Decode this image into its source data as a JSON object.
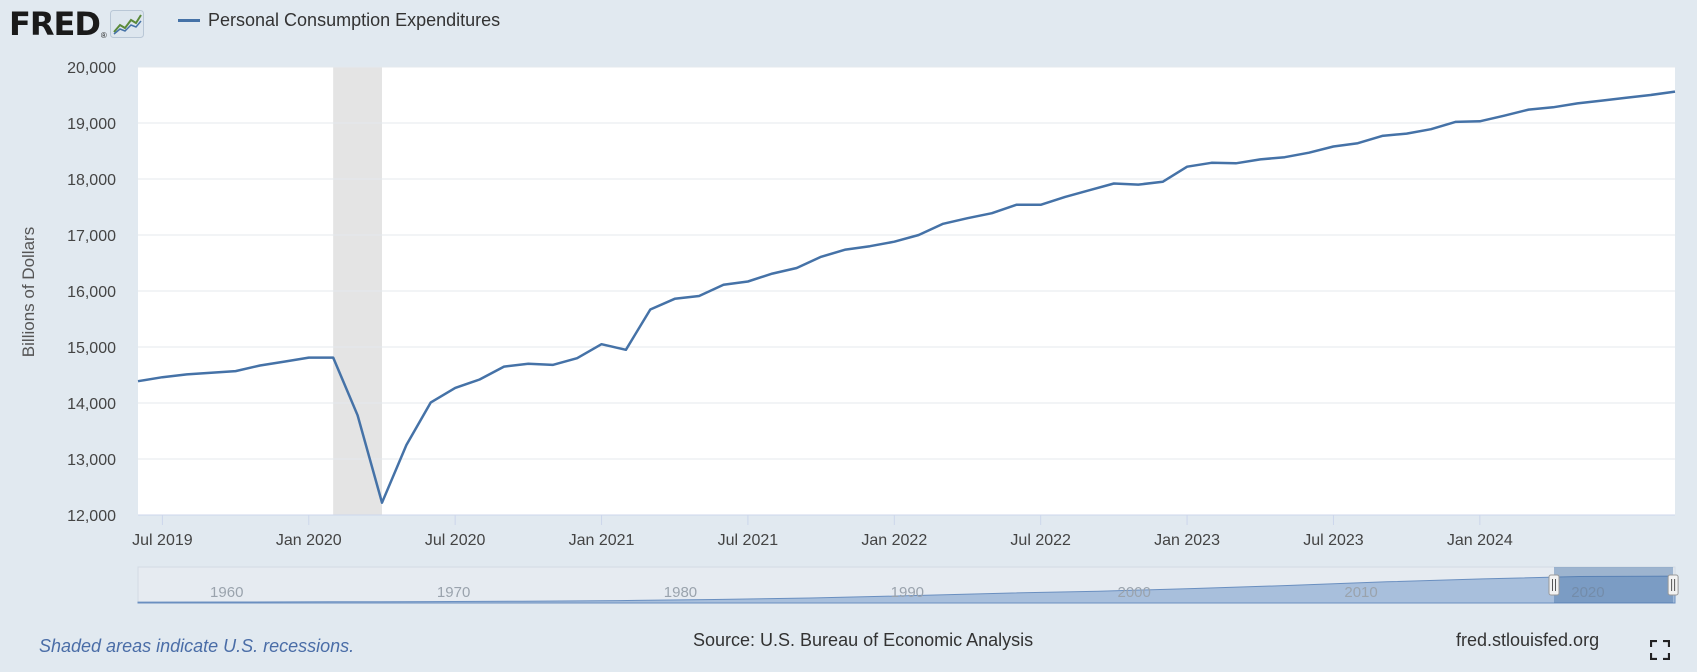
{
  "header": {
    "logo_text": "FRED",
    "logo_mark": "®",
    "legend_label": "Personal Consumption Expenditures",
    "line_color": "#4572a7"
  },
  "footer": {
    "recession_note": "Shaded areas indicate U.S. recessions.",
    "source": "Source: U.S. Bureau of Economic Analysis",
    "site": "fred.stlouisfed.org",
    "fullscreen_icon": "expand-icon"
  },
  "chart_data": {
    "type": "line",
    "title": "Personal Consumption Expenditures",
    "ylabel": "Billions of Dollars",
    "xlabel": "",
    "ylim": [
      12000,
      20000
    ],
    "yticks": [
      12000,
      13000,
      14000,
      15000,
      16000,
      17000,
      18000,
      19000,
      20000
    ],
    "ytick_labels": [
      "12,000",
      "13,000",
      "14,000",
      "15,000",
      "16,000",
      "17,000",
      "18,000",
      "19,000",
      "20,000"
    ],
    "xlim": [
      "2019-06",
      "2024-09"
    ],
    "xticks": [
      {
        "date": "2019-07",
        "label": "Jul 2019"
      },
      {
        "date": "2020-01",
        "label": "Jan 2020"
      },
      {
        "date": "2020-07",
        "label": "Jul 2020"
      },
      {
        "date": "2021-01",
        "label": "Jan 2021"
      },
      {
        "date": "2021-07",
        "label": "Jul 2021"
      },
      {
        "date": "2022-01",
        "label": "Jan 2022"
      },
      {
        "date": "2022-07",
        "label": "Jul 2022"
      },
      {
        "date": "2023-01",
        "label": "Jan 2023"
      },
      {
        "date": "2023-07",
        "label": "Jul 2023"
      },
      {
        "date": "2024-01",
        "label": "Jan 2024"
      }
    ],
    "recession": {
      "start": "2020-02",
      "end": "2020-04"
    },
    "grid": true,
    "series": [
      {
        "name": "Personal Consumption Expenditures",
        "color": "#4572a7",
        "x": [
          "2019-06",
          "2019-07",
          "2019-08",
          "2019-09",
          "2019-10",
          "2019-11",
          "2019-12",
          "2020-01",
          "2020-02",
          "2020-03",
          "2020-04",
          "2020-05",
          "2020-06",
          "2020-07",
          "2020-08",
          "2020-09",
          "2020-10",
          "2020-11",
          "2020-12",
          "2021-01",
          "2021-02",
          "2021-03",
          "2021-04",
          "2021-05",
          "2021-06",
          "2021-07",
          "2021-08",
          "2021-09",
          "2021-10",
          "2021-11",
          "2021-12",
          "2022-01",
          "2022-02",
          "2022-03",
          "2022-04",
          "2022-05",
          "2022-06",
          "2022-07",
          "2022-08",
          "2022-09",
          "2022-10",
          "2022-11",
          "2022-12",
          "2023-01",
          "2023-02",
          "2023-03",
          "2023-04",
          "2023-05",
          "2023-06",
          "2023-07",
          "2023-08",
          "2023-09",
          "2023-10",
          "2023-11",
          "2023-12",
          "2024-01",
          "2024-02",
          "2024-03",
          "2024-04",
          "2024-05",
          "2024-06",
          "2024-07",
          "2024-08",
          "2024-09"
        ],
        "values": [
          14390,
          14460,
          14510,
          14540,
          14570,
          14670,
          14740,
          14810,
          14810,
          13780,
          12220,
          13250,
          14010,
          14270,
          14420,
          14650,
          14700,
          14680,
          14800,
          15050,
          14950,
          15670,
          15860,
          15910,
          16110,
          16170,
          16310,
          16410,
          16610,
          16740,
          16800,
          16880,
          17000,
          17200,
          17300,
          17390,
          17540,
          17540,
          17680,
          17800,
          17920,
          17900,
          17950,
          18220,
          18290,
          18280,
          18350,
          18390,
          18470,
          18580,
          18640,
          18770,
          18810,
          18890,
          19020,
          19030,
          19130,
          19240,
          19280,
          19350,
          19400,
          19450,
          19500,
          19560
        ]
      }
    ]
  },
  "navigator": {
    "labels": [
      "1960",
      "1970",
      "1980",
      "1990",
      "2000",
      "2010",
      "2020"
    ],
    "range_start": "2019-06",
    "range_end": "2024-09",
    "overview_values": [
      505,
      541,
      651,
      762,
      978,
      1330,
      1925,
      2782,
      4020,
      5430,
      6550,
      8030,
      9770,
      11780,
      13370,
      14720,
      14960
    ]
  }
}
